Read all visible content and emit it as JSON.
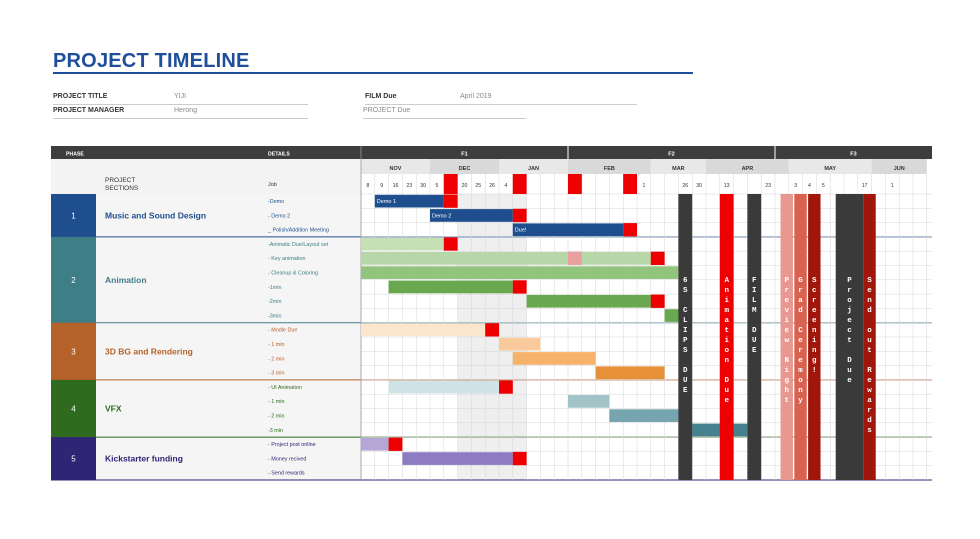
{
  "title": "PROJECT TIMELINE",
  "meta": {
    "project_title_label": "PROJECT TITLE",
    "project_title_value": "YIJI",
    "project_manager_label": "PROJECT MANAGER",
    "project_manager_value": "Herong",
    "film_due_label": "FILM Due",
    "film_due_value": "April 2019",
    "project_due_value": "PROJECT Due"
  },
  "header": {
    "phase": "PHASE",
    "details": "DETAILS",
    "project_sections": "PROJECT\nSECTIONS",
    "job": "Job",
    "quarters": [
      "F1",
      "F2",
      "F3"
    ],
    "months": [
      "NOV",
      "DEC",
      "JAN",
      "FEB",
      "MAR",
      "APR",
      "MAY",
      "JUN"
    ],
    "day_labels": [
      "8",
      "9",
      "16",
      "23",
      "30",
      "5",
      "",
      "20",
      "25",
      "26",
      "4",
      "6",
      "",
      "",
      "",
      "1",
      "",
      "",
      "",
      "",
      "1",
      "",
      "",
      "26",
      "30",
      "",
      "13",
      "",
      "",
      "23",
      "",
      "3",
      "4",
      "5",
      "",
      "",
      "17",
      "",
      "1"
    ]
  },
  "chart_data": {
    "type": "gantt",
    "phases": [
      {
        "number": "1",
        "name": "Music and Sound Design",
        "color": "#1f4e8e",
        "jobs": [
          "-Demo",
          "- Demo 2",
          "_ Polish/Addition Meeting"
        ]
      },
      {
        "number": "2",
        "name": "Animation",
        "color": "#3e7e87",
        "jobs": [
          "-Animatic Due/Layout set",
          "- Key animation",
          "- Cleanup & Coloring",
          "-1min",
          "-2min",
          "-3min"
        ]
      },
      {
        "number": "3",
        "name": "3D BG and Rendering",
        "color": "#b5612a",
        "jobs": [
          "- Modle Due",
          "- 1 min",
          "- 2 min",
          "- 3 min"
        ]
      },
      {
        "number": "4",
        "name": "VFX",
        "color": "#2e6b1e",
        "jobs": [
          "- UI Animation",
          "- 1 min",
          "- 2 min",
          "-3 min"
        ]
      },
      {
        "number": "5",
        "name": "Kickstarter funding",
        "color": "#2e2574",
        "jobs": [
          "- Project post online",
          "- Money recived",
          "- Send rewards"
        ]
      }
    ],
    "bar_labels": [
      "Demo 1",
      "Demo 2",
      "Due!"
    ],
    "milestones": [
      {
        "label": "6S CLIPS DUE",
        "color": "#3a3a3a"
      },
      {
        "label": "Animation Due",
        "color": "#ee0000"
      },
      {
        "label": "FILM DUE",
        "color": "#3a3a3a"
      },
      {
        "label": "Preview Night",
        "color": "#e89890"
      },
      {
        "label": "Grad Ceremony",
        "color": "#d9614f"
      },
      {
        "label": "Screening!",
        "color": "#a0160a"
      },
      {
        "label": "Project Due",
        "color": "#3a3a3a"
      },
      {
        "label": "Send out Rewards",
        "color": "#a0160a"
      }
    ]
  }
}
